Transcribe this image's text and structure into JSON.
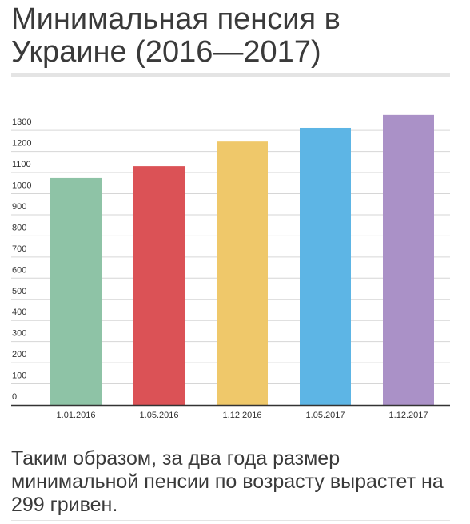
{
  "title": "Минимальная пенсия в Украине (2016—2017)",
  "summary": "Таким образом, за два года размер минимальной пенсии по возрасту вырастет на 299 гривен.",
  "chart_data": {
    "type": "bar",
    "title": "",
    "xlabel": "",
    "ylabel": "",
    "categories": [
      "1.01.2016",
      "1.05.2016",
      "1.12.2016",
      "1.05.2017",
      "1.12.2017"
    ],
    "values": [
      1074,
      1130,
      1247,
      1312,
      1373
    ],
    "colors": [
      "#8ec3a6",
      "#db5256",
      "#efc86a",
      "#5db5e5",
      "#aa91c7"
    ],
    "yticks": [
      0,
      100,
      200,
      300,
      400,
      500,
      600,
      700,
      800,
      900,
      1000,
      1100,
      1200,
      1300
    ],
    "ylim": [
      0,
      1373
    ],
    "grid": true,
    "legend": "none"
  }
}
